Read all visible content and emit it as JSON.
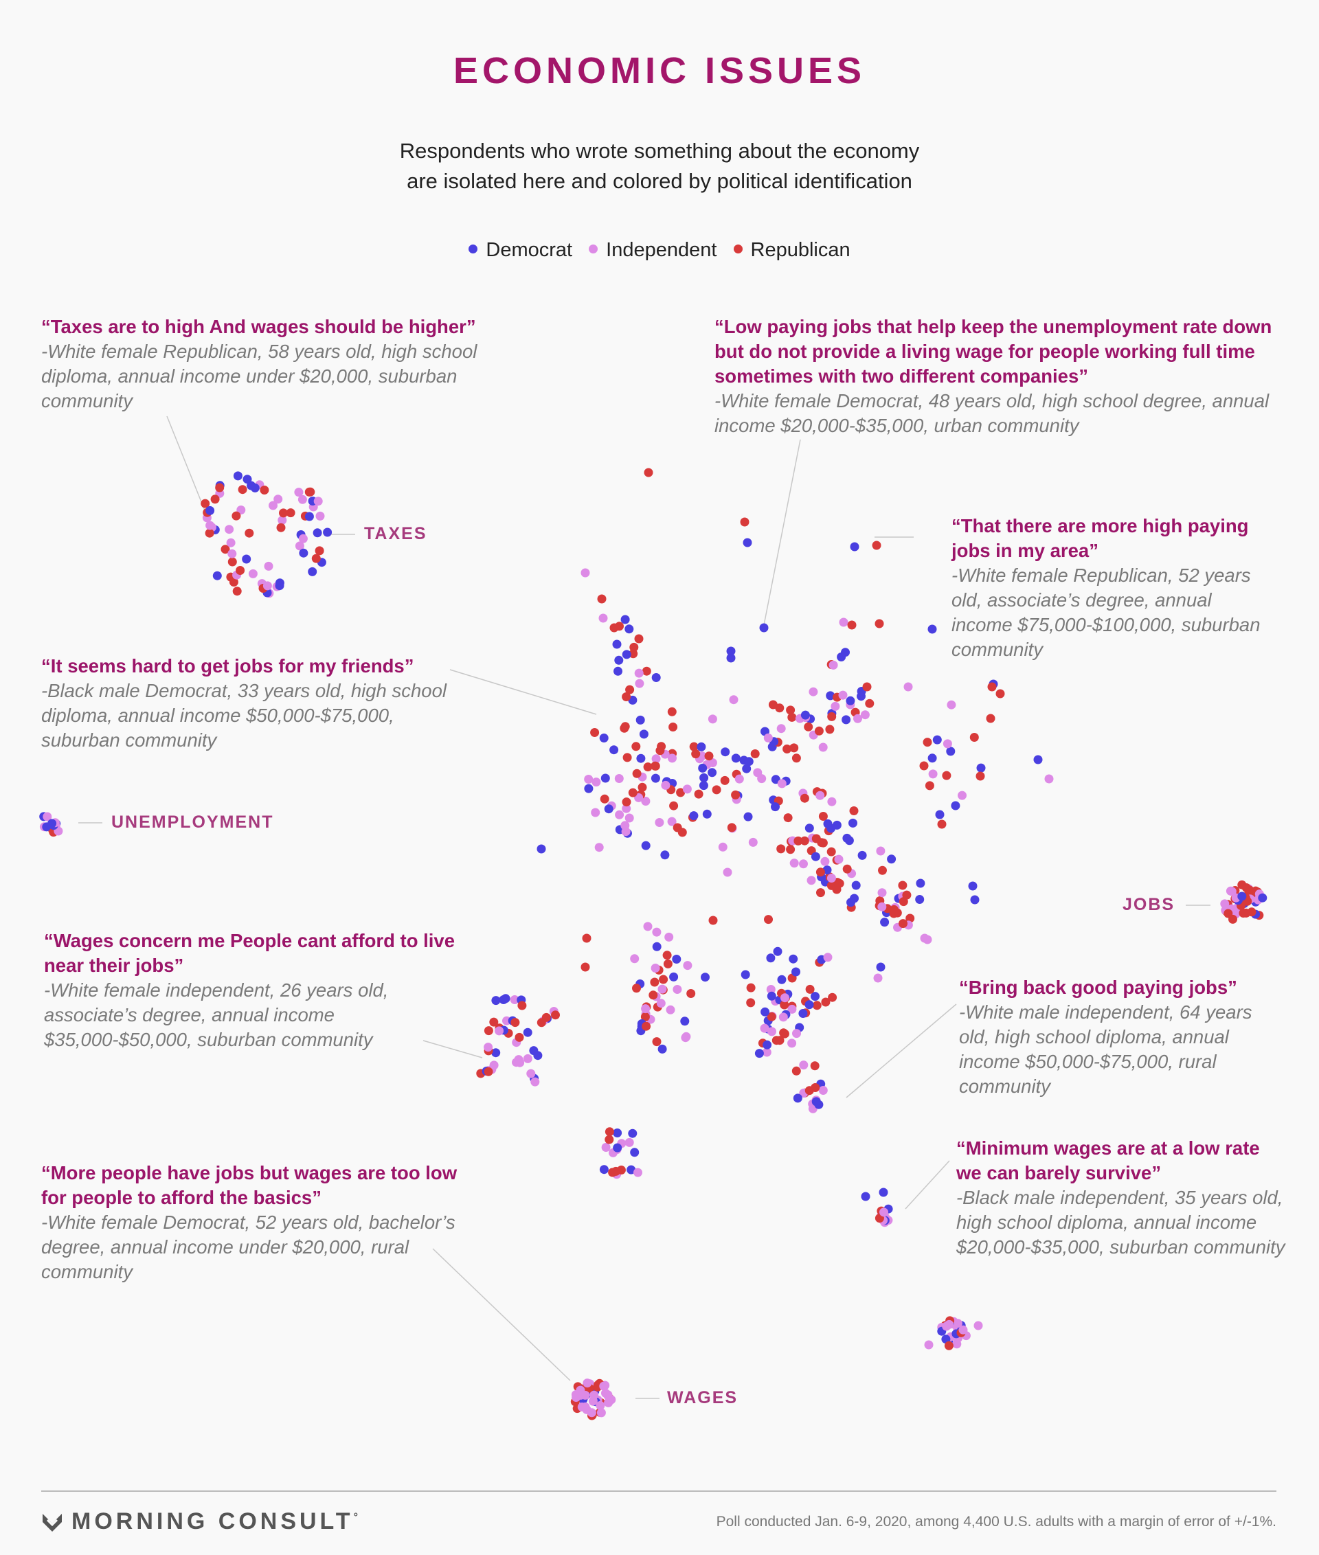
{
  "title": "ECONOMIC ISSUES",
  "subtitle": {
    "line1": "Respondents who wrote something about the economy",
    "line2": "are isolated here and colored by political identification"
  },
  "colors": {
    "democrat": "#4a3fe0",
    "independent": "#dd8ae6",
    "republican": "#d83a3a",
    "accent": "#a3166a"
  },
  "chart_data": {
    "type": "scatter",
    "series": [
      {
        "name": "Democrat",
        "color": "#4a3fe0"
      },
      {
        "name": "Independent",
        "color": "#dd8ae6"
      },
      {
        "name": "Republican",
        "color": "#d83a3a"
      }
    ],
    "clusters": [
      {
        "label": "TAXES",
        "shape": "ring",
        "count": 70,
        "mix": [
          0.3,
          0.4,
          0.3
        ]
      },
      {
        "label": "UNEMPLOYMENT",
        "shape": "blob",
        "count": 14,
        "mix": [
          0.35,
          0.55,
          0.1
        ]
      },
      {
        "label": "JOBS",
        "shape": "blob",
        "count": 42,
        "mix": [
          0.15,
          0.45,
          0.4
        ]
      },
      {
        "label": "WAGES",
        "shape": "blob",
        "count": 44,
        "mix": [
          0.2,
          0.5,
          0.3
        ]
      }
    ],
    "legend_position": "top-center",
    "grid": false,
    "axes": false
  },
  "legend": [
    {
      "label": "Democrat",
      "color": "#4a3fe0"
    },
    {
      "label": "Independent",
      "color": "#dd8ae6"
    },
    {
      "label": "Republican",
      "color": "#d83a3a"
    }
  ],
  "labels": {
    "taxes": "TAXES",
    "unemployment": "UNEMPLOYMENT",
    "jobs": "JOBS",
    "wages": "WAGES"
  },
  "quotes": {
    "q1": {
      "text": "“Taxes are to high And wages should be higher”",
      "attr": "-White female Republican, 58 years old, high school diploma, annual income under $20,000, suburban community"
    },
    "q2": {
      "text": "“Low paying jobs that help keep the unemployment rate down but do not provide a living wage for people working full time sometimes with two different companies”",
      "attr": "-White female Democrat, 48 years old, high school degree, annual income $20,000-$35,000, urban community"
    },
    "q3": {
      "text": "“That there are more high paying jobs in my area”",
      "attr": "-White female Republican, 52 years old, associate’s degree, annual income $75,000-$100,000, suburban community"
    },
    "q4": {
      "text": "“It seems hard to get jobs for my friends”",
      "attr": "-Black male Democrat, 33 years old, high school diploma, annual income $50,000-$75,000, suburban community"
    },
    "q5": {
      "text": "“Wages concern me People cant afford to live near their jobs”",
      "attr": "-White female independent, 26 years old, associate’s degree, annual income $35,000-$50,000, suburban community"
    },
    "q6": {
      "text": "“Bring back good paying jobs”",
      "attr": "-White male independent, 64 years old, high school diploma, annual income $50,000-$75,000, rural community"
    },
    "q7": {
      "text": "“More people have jobs but wages are too low for people to afford the basics”",
      "attr": "-White female Democrat, 52 years old, bachelor’s degree, annual income under $20,000, rural community"
    },
    "q8": {
      "text": "“Minimum wages are at a low rate we can barely survive”",
      "attr": "-Black male independent, 35 years old, high school diploma, annual income $20,000-$35,000, suburban community"
    }
  },
  "footer": {
    "brand": "MORNING CONSULT",
    "trademark": "°",
    "note": "Poll conducted Jan. 6-9, 2020, among 4,400 U.S. adults with a margin of error of +/-1%."
  }
}
